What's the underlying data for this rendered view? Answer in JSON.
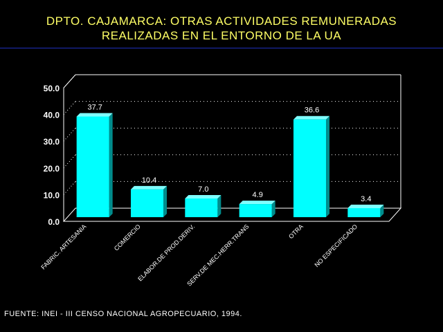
{
  "title_line1": "DPTO. CAJAMARCA: OTRAS ACTIVIDADES REMUNERADAS",
  "title_line2": "REALIZADAS EN EL ENTORNO DE LA UA",
  "source": "FUENTE: INEI - III CENSO NACIONAL AGROPECUARIO, 1994.",
  "colors": {
    "bar": "#00ffff",
    "bar_side": "#008c8c",
    "bar_top": "#80ffff",
    "text": "#ffffff",
    "title": "#ffff66",
    "rule": "#1f2fbf",
    "axis": "#ffffff",
    "grid": "#ffffff"
  },
  "chart_data": {
    "type": "bar",
    "title": "",
    "xlabel": "",
    "ylabel": "",
    "categories": [
      "FABRIC. ARTESANIA",
      "COMERCIO",
      "ELABOR.DE PROD.DERIV.",
      "SERV.DE MEC.HERR.TRANS",
      "OTRA",
      "NO ESPECIFICADO"
    ],
    "values": [
      37.7,
      10.4,
      7.0,
      4.9,
      36.6,
      3.4
    ],
    "value_labels": [
      "37.7",
      "10.4",
      "7.0",
      "4.9",
      "36.6",
      "3.4"
    ],
    "yticks": [
      "0.0",
      "10.0",
      "20.0",
      "30.0",
      "40.0",
      "50.0"
    ],
    "ylim": [
      0,
      50
    ],
    "grid": true,
    "style": "3d"
  }
}
